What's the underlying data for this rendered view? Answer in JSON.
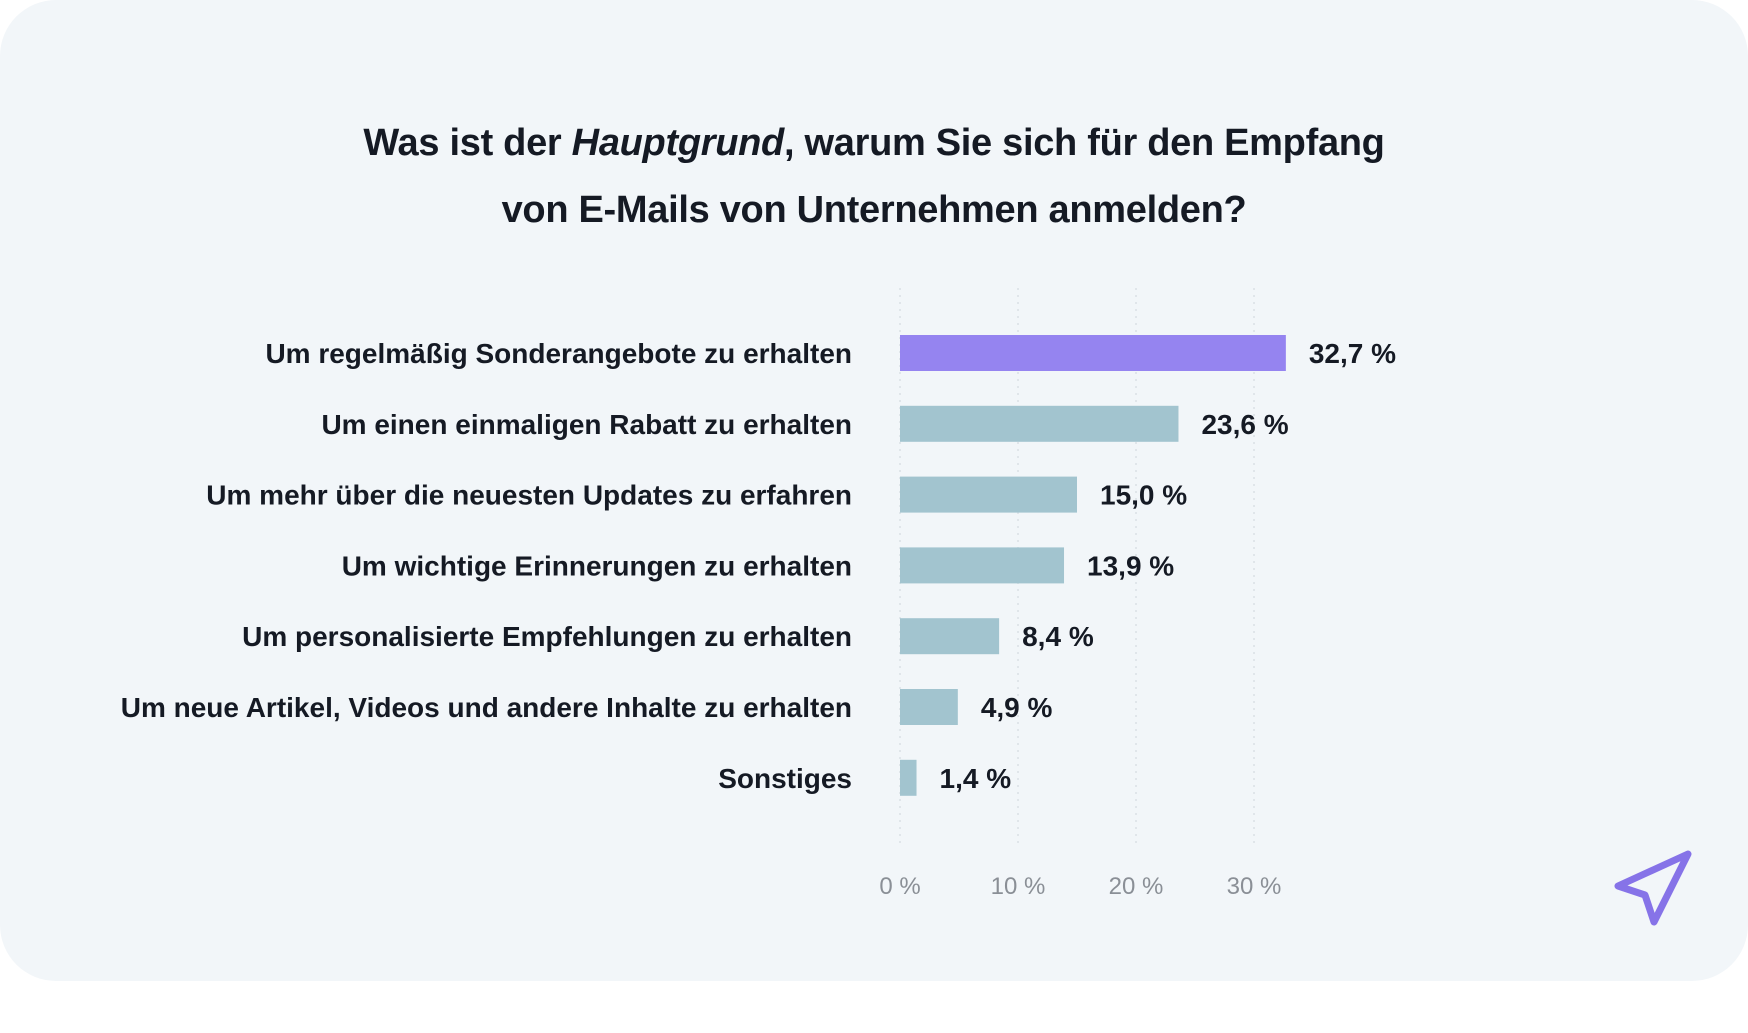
{
  "card": {
    "title_prefix": "Was ist der ",
    "title_emphasis": "Hauptgrund",
    "title_line1_rest": ", warum Sie sich für den Empfang",
    "title_line2": "von E-Mails von Unternehmen anmelden?"
  },
  "colors": {
    "highlight": "#9584f0",
    "bar": "#a2c4cf",
    "text": "#151a24",
    "tick": "#8a8f96",
    "grid": "#d4dadf",
    "logo": "#8673e8"
  },
  "logo": {
    "icon": "paper-plane-icon"
  },
  "chart_data": {
    "type": "bar",
    "orientation": "horizontal",
    "title": "Was ist der Hauptgrund, warum Sie sich für den Empfang von E-Mails von Unternehmen anmelden?",
    "categories": [
      "Um regelmäßig Sonderangebote zu erhalten",
      "Um einen einmaligen Rabatt zu erhalten",
      "Um mehr über die neuesten Updates zu erfahren",
      "Um wichtige Erinnerungen zu erhalten",
      "Um personalisierte Empfehlungen zu erhalten",
      "Um neue Artikel, Videos und andere Inhalte zu erhalten",
      "Sonstiges"
    ],
    "values": [
      32.7,
      23.6,
      15.0,
      13.9,
      8.4,
      4.9,
      1.4
    ],
    "value_labels": [
      "32,7 %",
      "23,6 %",
      "15,0 %",
      "13,9 %",
      "8,4 %",
      "4,9 %",
      "1,4 %"
    ],
    "highlighted_index": 0,
    "xlim": [
      0,
      30
    ],
    "xticks": [
      0,
      10,
      20,
      30
    ],
    "xtick_labels": [
      "0 %",
      "10 %",
      "20 %",
      "30 %"
    ],
    "xlabel": "",
    "ylabel": "",
    "grid": "vertical dotted"
  }
}
